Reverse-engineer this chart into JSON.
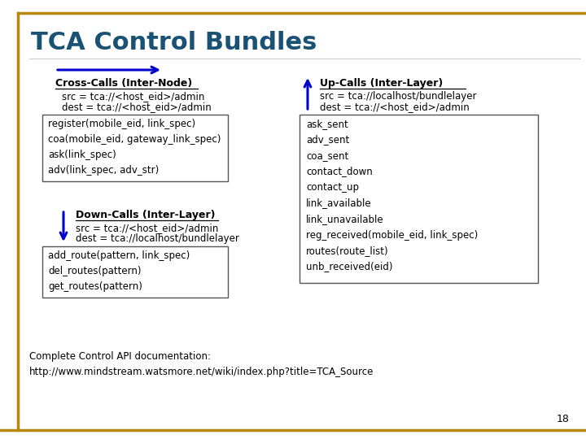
{
  "title": "TCA Control Bundles",
  "bg_color": "#ffffff",
  "title_color": "#1a5276",
  "border_color": "#b8860b",
  "slide_number": "18",
  "cross_calls_label": "Cross-Calls (Inter-Node)",
  "cross_calls_src": "src = tca://<host_eid>/admin",
  "cross_calls_dest": "dest = tca://<host_eid>/admin",
  "cross_calls_box": "register(mobile_eid, link_spec)\ncoa(mobile_eid, gateway_link_spec)\nask(link_spec)\nadv(link_spec, adv_str)",
  "down_calls_label": "Down-Calls (Inter-Layer)",
  "down_calls_src": "src = tca://<host_eid>/admin",
  "down_calls_dest": "dest = tca://localhost/bundlelayer",
  "down_calls_box": "add_route(pattern, link_spec)\ndel_routes(pattern)\nget_routes(pattern)",
  "up_calls_label": "Up-Calls (Inter-Layer)",
  "up_calls_src": "src = tca://localhost/bundlelayer",
  "up_calls_dest": "dest = tca://<host_eid>/admin",
  "up_calls_box": "ask_sent\nadv_sent\ncoa_sent\ncontact_down\ncontact_up\nlink_available\nlink_unavailable\nreg_received(mobile_eid, link_spec)\nroutes(route_list)\nunb_received(eid)",
  "footer": "Complete Control API documentation:\nhttp://www.mindstream.watsmore.net/wiki/index.php?title=TCA_Source",
  "arrow_color": "#0000cd",
  "box_edge_color": "#555555",
  "text_color": "#000000",
  "label_color": "#000000"
}
